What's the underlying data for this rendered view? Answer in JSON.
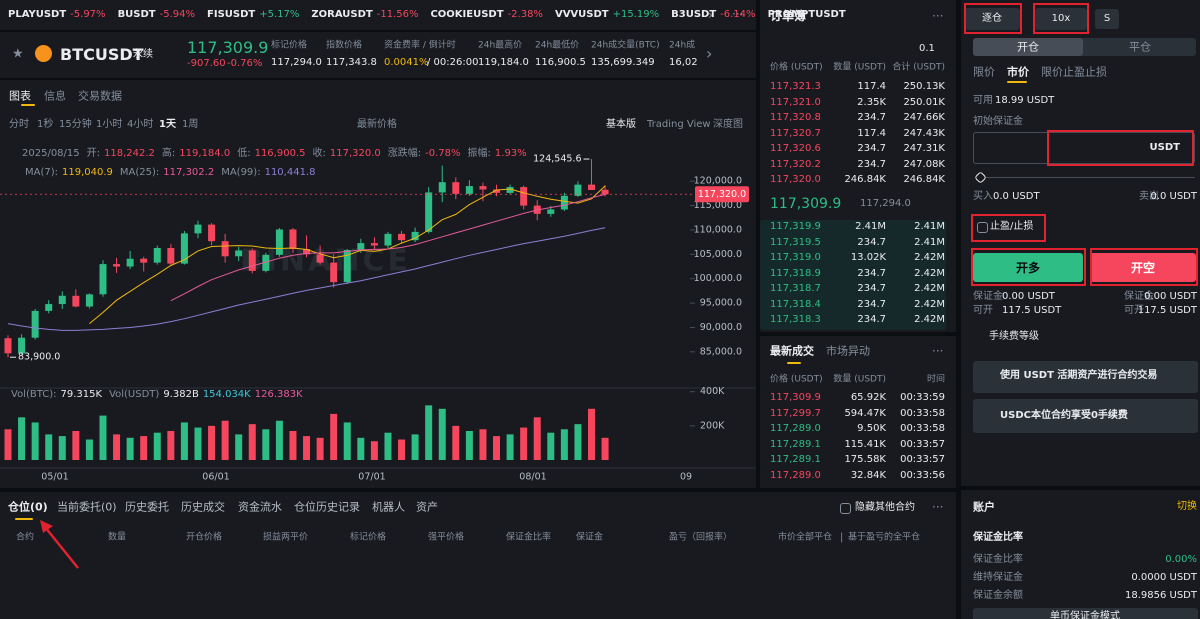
{
  "ticker_bar": [
    {
      "symbol": "PLAYUSDT",
      "change": "-5.97%",
      "color": "#f6465d"
    },
    {
      "symbol": "BUSDT",
      "change": "-5.94%",
      "color": "#f6465d"
    },
    {
      "symbol": "FISUSDT",
      "change": "+5.17%",
      "color": "#2ebd85"
    },
    {
      "symbol": "ZORAUSDT",
      "change": "-11.56%",
      "color": "#f6465d"
    },
    {
      "symbol": "COOKIEUSDT",
      "change": "-2.38%",
      "color": "#f6465d"
    },
    {
      "symbol": "VVVUSDT",
      "change": "+15.19%",
      "color": "#2ebd85"
    },
    {
      "symbol": "B3USDT",
      "change": "-6.14%",
      "color": "#f6465d"
    },
    {
      "symbol": "PROMPTUSDT"
    }
  ],
  "header": {
    "symbol": "BTCUSDT",
    "contract": "永续",
    "price": "117,309.9",
    "change_abs": "-907.60",
    "change_pct": "-0.76%",
    "stats": [
      {
        "label": "标记价格",
        "value": "117,294.0"
      },
      {
        "label": "指数价格",
        "value": "117,343.8"
      },
      {
        "label": "资金费率 / 倒计时",
        "value": "0.0041%",
        "value2": "/ 00:26:00"
      },
      {
        "label": "24h最高价",
        "value": "119,184.0"
      },
      {
        "label": "24h最低价",
        "value": "116,900.5"
      },
      {
        "label": "24h成交量(BTC)",
        "value": "135,699.349"
      },
      {
        "label": "24h成",
        "value": "16,02"
      }
    ]
  },
  "chart_panel": {
    "tabs": [
      "图表",
      "信息",
      "交易数据"
    ],
    "intervals": [
      "分时",
      "1秒",
      "15分钟",
      "1小时",
      "4小时",
      "1天",
      "1周"
    ],
    "active_interval": 5,
    "price_type": "最新价格",
    "views": [
      "基本版",
      "Trading View",
      "深度图"
    ],
    "candle_legend": {
      "date": "2025/08/15",
      "items": [
        {
          "label": "开:",
          "value": "118,242.2"
        },
        {
          "label": "高:",
          "value": "119,184.0"
        },
        {
          "label": "低:",
          "value": "116,900.5"
        },
        {
          "label": "收:",
          "value": "117,320.0"
        },
        {
          "label": "涨跌幅:",
          "value": "-0.78%"
        },
        {
          "label": "振幅:",
          "value": "1.93%"
        }
      ]
    },
    "vol_legend": [
      {
        "label": "Vol(BTC):",
        "value": "79.315K",
        "color": "#eaecef"
      },
      {
        "label": "Vol(USDT)",
        "value": "9.382B",
        "color": "#eaecef"
      },
      {
        "value": "154.034K",
        "color": "#3fc6d9"
      },
      {
        "value": "126.383K",
        "color": "#e85a9b"
      }
    ]
  },
  "chart_data": {
    "type": "candlestick",
    "watermark": "BINANCE",
    "up_color": "#2ebd85",
    "down_color": "#f6465d",
    "ylim": [
      78200,
      126400
    ],
    "yticks": [
      {
        "value": 85000,
        "label": "85,000.0"
      },
      {
        "value": 90000,
        "label": "90,000.0"
      },
      {
        "value": 95000,
        "label": "95,000.0"
      },
      {
        "value": 100000,
        "label": "100,000.0"
      },
      {
        "value": 105000,
        "label": "105,000.0"
      },
      {
        "value": 110000,
        "label": "110,000.0"
      },
      {
        "value": 115000,
        "label": "115,000.0"
      },
      {
        "value": 120000,
        "label": "120,000.0"
      }
    ],
    "xtick_labels": [
      "05/01",
      "06/01",
      "07/01",
      "08/01",
      "09"
    ],
    "last_price": {
      "value": 117320,
      "label": "117,320.0"
    },
    "high_mark": {
      "value": 124545.6,
      "label": "124,545.6"
    },
    "low_mark": {
      "value": 83900,
      "label": "83,900.0"
    },
    "candles": [
      [
        87800,
        88400,
        83900,
        84700
      ],
      [
        84700,
        88600,
        84300,
        87900
      ],
      [
        87900,
        93800,
        87500,
        93400
      ],
      [
        93400,
        95600,
        92900,
        94800
      ],
      [
        94800,
        97400,
        93800,
        96500
      ],
      [
        96500,
        97800,
        94100,
        94300
      ],
      [
        94300,
        97000,
        93900,
        96800
      ],
      [
        96800,
        103800,
        96300,
        103000
      ],
      [
        103000,
        104300,
        101200,
        102500
      ],
      [
        102500,
        105700,
        102000,
        104100
      ],
      [
        104100,
        104500,
        101500,
        103300
      ],
      [
        103300,
        106800,
        102900,
        106300
      ],
      [
        106300,
        107100,
        102600,
        103100
      ],
      [
        103100,
        109800,
        102900,
        109300
      ],
      [
        109300,
        111900,
        108300,
        111100
      ],
      [
        111100,
        111400,
        106900,
        107700
      ],
      [
        107700,
        109200,
        103300,
        104600
      ],
      [
        104600,
        106500,
        103600,
        105800
      ],
      [
        105800,
        106200,
        101100,
        101600
      ],
      [
        101600,
        105300,
        101300,
        104900
      ],
      [
        104900,
        110400,
        104500,
        110100
      ],
      [
        110100,
        110400,
        105300,
        106100
      ],
      [
        106100,
        108900,
        104400,
        105000
      ],
      [
        105000,
        106800,
        102900,
        103300
      ],
      [
        103300,
        105000,
        98200,
        99300
      ],
      [
        99300,
        106100,
        98900,
        105900
      ],
      [
        105900,
        108200,
        105300,
        107300
      ],
      [
        107300,
        108500,
        106000,
        106800
      ],
      [
        106800,
        109600,
        106300,
        109200
      ],
      [
        109200,
        109800,
        107200,
        107900
      ],
      [
        107900,
        110500,
        107500,
        109600
      ],
      [
        109600,
        118800,
        109300,
        117700
      ],
      [
        117700,
        123200,
        115700,
        119800
      ],
      [
        119800,
        120800,
        116300,
        117400
      ],
      [
        117400,
        120200,
        117000,
        119000
      ],
      [
        119000,
        119700,
        115900,
        118300
      ],
      [
        118300,
        119300,
        116900,
        117600
      ],
      [
        117600,
        119300,
        117300,
        118800
      ],
      [
        118800,
        119100,
        114200,
        115000
      ],
      [
        115000,
        116100,
        112000,
        113300
      ],
      [
        113300,
        114900,
        112700,
        114200
      ],
      [
        114200,
        117600,
        113900,
        117000
      ],
      [
        117000,
        120000,
        116800,
        119300
      ],
      [
        119300,
        124545.6,
        118200,
        118200
      ],
      [
        118242.2,
        119184.0,
        116900.5,
        117320.0
      ]
    ],
    "ma_lines": [
      {
        "name": "MA(7):",
        "color": "#f0b90b",
        "legend_value": "119,040.9",
        "values": [
          null,
          null,
          null,
          null,
          null,
          null,
          90800,
          93100,
          95600,
          97400,
          99200,
          100900,
          102700,
          103900,
          105700,
          106600,
          106700,
          106800,
          106700,
          106300,
          106200,
          106300,
          106000,
          105100,
          104300,
          104800,
          105800,
          105600,
          106100,
          107300,
          108300,
          110000,
          112100,
          113200,
          115200,
          116700,
          118200,
          118400,
          117600,
          116900,
          116300,
          115900,
          115500,
          116400,
          119040.9
        ]
      },
      {
        "name": "MA(25):",
        "color": "#e85a9b",
        "legend_value": "117,302.2",
        "values": [
          null,
          null,
          null,
          null,
          null,
          null,
          null,
          null,
          null,
          null,
          null,
          null,
          95500,
          96900,
          98400,
          99800,
          100800,
          101800,
          102600,
          103400,
          104200,
          104800,
          105200,
          105300,
          105300,
          105600,
          105900,
          106000,
          106100,
          106400,
          107000,
          107800,
          108600,
          109400,
          110200,
          111000,
          111800,
          112600,
          113400,
          114100,
          114600,
          115100,
          115800,
          116600,
          117302.2
        ]
      },
      {
        "name": "MA(99):",
        "color": "#8e7dd6",
        "legend_value": "110,441.8",
        "values": [
          90800,
          90300,
          89900,
          89600,
          89400,
          89400,
          89500,
          89600,
          89800,
          90000,
          90300,
          90700,
          91200,
          91800,
          92500,
          93200,
          93900,
          94600,
          95200,
          95800,
          96400,
          97000,
          97600,
          98100,
          98600,
          99100,
          99600,
          100200,
          100800,
          101400,
          102000,
          102700,
          103400,
          104100,
          104800,
          105400,
          106000,
          106600,
          107200,
          107700,
          108200,
          108700,
          109300,
          109900,
          110441.8
        ]
      }
    ],
    "volume": {
      "ylim": [
        0,
        410000
      ],
      "yticks": [
        {
          "value": 200000,
          "label": "200K"
        },
        {
          "value": 400000,
          "label": "400K"
        }
      ],
      "values": [
        180000,
        250000,
        220000,
        150000,
        140000,
        170000,
        120000,
        260000,
        150000,
        130000,
        140000,
        160000,
        170000,
        220000,
        190000,
        200000,
        230000,
        150000,
        210000,
        180000,
        230000,
        170000,
        140000,
        130000,
        270000,
        220000,
        130000,
        110000,
        160000,
        120000,
        150000,
        320000,
        300000,
        200000,
        170000,
        180000,
        140000,
        150000,
        190000,
        250000,
        160000,
        180000,
        210000,
        300000,
        130000
      ]
    }
  },
  "orderbook": {
    "title": "订单簿",
    "precision": "0.1",
    "headers": [
      "价格 (USDT)",
      "数量 (USDT)",
      "合计 (USDT)"
    ],
    "asks": [
      [
        "117,321.3",
        "117.4",
        "250.13K"
      ],
      [
        "117,321.0",
        "2.35K",
        "250.01K"
      ],
      [
        "117,320.8",
        "234.7",
        "247.66K"
      ],
      [
        "117,320.7",
        "117.4",
        "247.43K"
      ],
      [
        "117,320.6",
        "234.7",
        "247.31K"
      ],
      [
        "117,320.2",
        "234.7",
        "247.08K"
      ],
      [
        "117,320.0",
        "246.84K",
        "246.84K"
      ]
    ],
    "mid": {
      "price": "117,309.9",
      "mark": "117,294.0"
    },
    "bids": [
      [
        "117,319.9",
        "2.41M",
        "2.41M"
      ],
      [
        "117,319.5",
        "234.7",
        "2.41M"
      ],
      [
        "117,319.0",
        "13.02K",
        "2.42M"
      ],
      [
        "117,318.9",
        "234.7",
        "2.42M"
      ],
      [
        "117,318.7",
        "234.7",
        "2.42M"
      ],
      [
        "117,318.4",
        "234.7",
        "2.42M"
      ],
      [
        "117,318.3",
        "234.7",
        "2.42M"
      ]
    ]
  },
  "trades": {
    "tabs": [
      "最新成交",
      "市场异动"
    ],
    "headers": [
      "价格 (USDT)",
      "数量 (USDT)",
      "时间"
    ],
    "rows": [
      [
        "117,309.9",
        "65.92K",
        "00:33:59"
      ],
      [
        "117,299.7",
        "594.47K",
        "00:33:58"
      ],
      [
        "117,289.0",
        "9.50K",
        "00:33:58"
      ],
      [
        "117,289.1",
        "115.41K",
        "00:33:57"
      ],
      [
        "117,289.1",
        "175.58K",
        "00:33:57"
      ],
      [
        "117,289.0",
        "32.84K",
        "00:33:56"
      ]
    ],
    "colors": [
      "#f6465d",
      "#f6465d",
      "#2ebd85",
      "#2ebd85",
      "#2ebd85",
      "#f6465d"
    ]
  },
  "positions": {
    "tabs": [
      "仓位(0)",
      "当前委托(0)",
      "历史委托",
      "历史成交",
      "资金流水",
      "仓位历史记录",
      "机器人",
      "资产"
    ],
    "hide_others": "隐藏其他合约",
    "columns": [
      "合约",
      "数量",
      "开仓价格",
      "损益两平价",
      "标记价格",
      "强平价格",
      "保证金比率",
      "保证金",
      "盈亏（回报率）"
    ],
    "actions": [
      "市价全部平仓",
      "基于盈亏的全平仓"
    ]
  },
  "order_form": {
    "margin_mode": "逐仓",
    "leverage": "10x",
    "mode_s": "S",
    "tabs": [
      "开仓",
      "平仓"
    ],
    "order_types": [
      "限价",
      "市价",
      "限价止盈止损"
    ],
    "available_label": "可用",
    "available": "18.99 USDT",
    "initial_margin": "初始保证金",
    "currency": "USDT",
    "buy_label": "买入",
    "buy_amount": "0.0 USDT",
    "sell_label": "卖出",
    "sell_amount": "0.0 USDT",
    "tpsl": "止盈/止损",
    "long": "开多",
    "short": "开空",
    "long_info": [
      [
        "保证金",
        "0.00 USDT"
      ],
      [
        "可开",
        "117.5 USDT"
      ]
    ],
    "short_info": [
      [
        "保证金",
        "0.00 USDT"
      ],
      [
        "可开",
        "117.5 USDT"
      ]
    ],
    "fee_tier": "手续费等级",
    "promos": [
      "使用 USDT 活期资产进行合约交易",
      "USDC本位合约享受0手续费"
    ]
  },
  "account": {
    "title": "账户",
    "switch": "切换",
    "section": "保证金比率",
    "rows": [
      [
        "保证金比率",
        "0.00%"
      ],
      [
        "维持保证金",
        "0.0000 USDT"
      ],
      [
        "保证金余额",
        "18.9856 USDT"
      ]
    ],
    "button": "单币保证金模式"
  }
}
